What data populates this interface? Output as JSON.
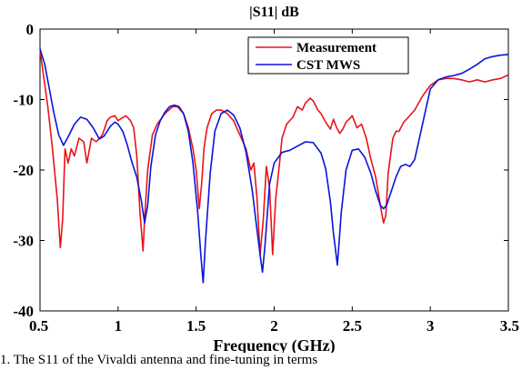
{
  "chart_data": {
    "type": "line",
    "title": "|S11| dB",
    "xlabel": "Frequency (GHz)",
    "ylabel": "",
    "xlim": [
      0.5,
      3.5
    ],
    "ylim": [
      -40,
      0
    ],
    "xticks": [
      "0.5",
      "1",
      "1.5",
      "2",
      "2.5",
      "3",
      "3.5"
    ],
    "yticks": [
      "0",
      "-10",
      "-20",
      "-30",
      "-40"
    ],
    "grid": false,
    "legend_position": "top-right",
    "series": [
      {
        "name": "Measurement",
        "color": "#e8141a",
        "x": [
          0.5,
          0.55,
          0.58,
          0.61,
          0.63,
          0.645,
          0.66,
          0.68,
          0.7,
          0.72,
          0.75,
          0.78,
          0.8,
          0.83,
          0.86,
          0.9,
          0.93,
          0.95,
          0.98,
          1.0,
          1.02,
          1.05,
          1.08,
          1.1,
          1.12,
          1.14,
          1.16,
          1.17,
          1.19,
          1.22,
          1.25,
          1.3,
          1.35,
          1.38,
          1.42,
          1.45,
          1.48,
          1.5,
          1.52,
          1.535,
          1.55,
          1.57,
          1.6,
          1.63,
          1.66,
          1.7,
          1.74,
          1.78,
          1.82,
          1.85,
          1.87,
          1.89,
          1.91,
          1.93,
          1.95,
          1.97,
          1.99,
          2.01,
          2.03,
          2.05,
          2.08,
          2.12,
          2.15,
          2.18,
          2.2,
          2.23,
          2.25,
          2.28,
          2.3,
          2.33,
          2.36,
          2.38,
          2.4,
          2.42,
          2.44,
          2.46,
          2.48,
          2.5,
          2.53,
          2.56,
          2.59,
          2.62,
          2.65,
          2.68,
          2.7,
          2.715,
          2.73,
          2.76,
          2.78,
          2.8,
          2.83,
          2.86,
          2.9,
          2.95,
          3.0,
          3.05,
          3.1,
          3.15,
          3.2,
          3.25,
          3.3,
          3.35,
          3.4,
          3.45,
          3.5
        ],
        "y": [
          -3,
          -11,
          -17,
          -24,
          -31,
          -27,
          -17,
          -19,
          -17,
          -18,
          -15.5,
          -16,
          -19,
          -15.5,
          -16,
          -15,
          -13,
          -12.5,
          -12.3,
          -13,
          -12.7,
          -12.3,
          -13,
          -14,
          -18,
          -26,
          -31.5,
          -27,
          -20,
          -15,
          -13.5,
          -12,
          -11,
          -11,
          -12,
          -14,
          -17,
          -20,
          -25.5,
          -22,
          -17,
          -14,
          -12,
          -11.5,
          -11.5,
          -12,
          -13,
          -15,
          -17,
          -20,
          -19,
          -24,
          -32,
          -27,
          -19.5,
          -22.5,
          -32,
          -24,
          -20,
          -15.5,
          -13.5,
          -12.5,
          -11,
          -11.5,
          -10.5,
          -9.8,
          -10.2,
          -11.5,
          -12,
          -13.2,
          -14.2,
          -12.8,
          -14,
          -14.8,
          -14.2,
          -13.2,
          -12.8,
          -12.3,
          -14,
          -13.5,
          -15.5,
          -18.5,
          -21,
          -25,
          -27.5,
          -26.5,
          -20.5,
          -15.5,
          -14.5,
          -14.5,
          -13.2,
          -12.5,
          -11.5,
          -9.5,
          -8,
          -7.2,
          -7,
          -7,
          -7.2,
          -7.5,
          -7.2,
          -7.5,
          -7.2,
          -7,
          -6.5
        ]
      },
      {
        "name": "CST MWS",
        "color": "#0a14d8",
        "x": [
          0.5,
          0.53,
          0.56,
          0.59,
          0.62,
          0.65,
          0.68,
          0.72,
          0.76,
          0.8,
          0.84,
          0.88,
          0.91,
          0.95,
          0.98,
          1.0,
          1.03,
          1.06,
          1.09,
          1.12,
          1.15,
          1.17,
          1.19,
          1.21,
          1.24,
          1.27,
          1.3,
          1.33,
          1.36,
          1.39,
          1.42,
          1.45,
          1.48,
          1.51,
          1.53,
          1.545,
          1.56,
          1.59,
          1.62,
          1.66,
          1.7,
          1.74,
          1.78,
          1.82,
          1.86,
          1.89,
          1.91,
          1.925,
          1.94,
          1.97,
          2.0,
          2.05,
          2.1,
          2.15,
          2.2,
          2.25,
          2.3,
          2.33,
          2.36,
          2.38,
          2.405,
          2.43,
          2.46,
          2.5,
          2.54,
          2.58,
          2.62,
          2.65,
          2.68,
          2.7,
          2.72,
          2.75,
          2.78,
          2.81,
          2.84,
          2.87,
          2.9,
          2.93,
          2.96,
          3.0,
          3.05,
          3.1,
          3.15,
          3.2,
          3.25,
          3.3,
          3.35,
          3.4,
          3.45,
          3.5
        ],
        "y": [
          -2.8,
          -5,
          -8.5,
          -12,
          -15,
          -16.5,
          -15.3,
          -13.5,
          -12.5,
          -12.8,
          -14,
          -15.6,
          -15.2,
          -13.8,
          -13.2,
          -13.5,
          -14.5,
          -16.5,
          -19,
          -21,
          -24.5,
          -27.5,
          -25,
          -19.5,
          -15,
          -13,
          -11.8,
          -11,
          -10.8,
          -11,
          -12,
          -14.5,
          -19,
          -26,
          -32,
          -36,
          -30,
          -20.5,
          -14.5,
          -12,
          -11.5,
          -12.2,
          -14,
          -17.5,
          -23,
          -28.5,
          -32,
          -34.5,
          -31,
          -22,
          -19,
          -17.5,
          -17.2,
          -16.6,
          -16,
          -16.1,
          -17.6,
          -19.8,
          -24.5,
          -29,
          -33.5,
          -26,
          -20,
          -17.2,
          -17,
          -18.2,
          -20.5,
          -23,
          -25,
          -25.5,
          -25,
          -23,
          -21,
          -19.5,
          -19.2,
          -19.5,
          -18.5,
          -15.5,
          -12.5,
          -8.5,
          -7.2,
          -6.8,
          -6.6,
          -6.3,
          -5.7,
          -5,
          -4.2,
          -3.9,
          -3.7,
          -3.6
        ]
      }
    ]
  },
  "caption": "1. The S11 of the Vivaldi antenna and fine-tuning in terms"
}
